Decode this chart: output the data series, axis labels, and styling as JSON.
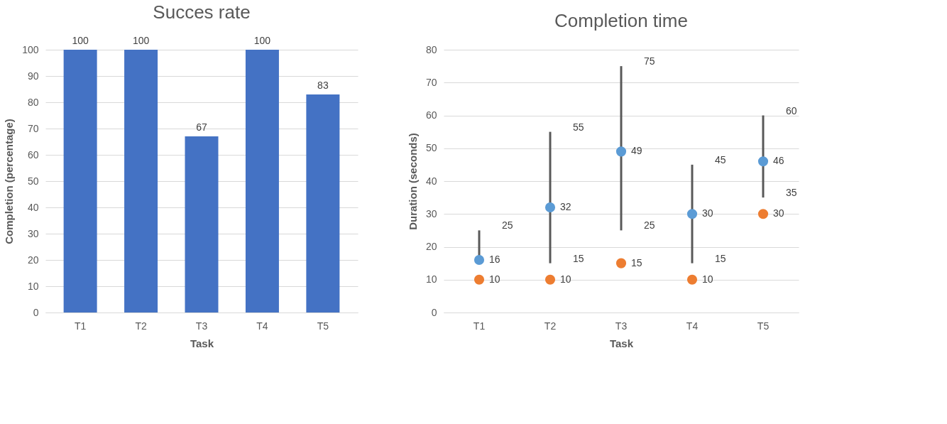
{
  "chart_data": [
    {
      "type": "bar",
      "title": "Succes rate",
      "xlabel": "Task",
      "ylabel": "Completion (percentage)",
      "categories": [
        "T1",
        "T2",
        "T3",
        "T4",
        "T5"
      ],
      "series": [
        {
          "color": "#4472c4",
          "values": [
            100,
            100,
            67,
            100,
            83
          ]
        }
      ],
      "ylim": [
        0,
        100
      ],
      "yticks": [
        0,
        10,
        20,
        30,
        40,
        50,
        60,
        70,
        80,
        90,
        100
      ],
      "grid": "y",
      "data_labels": true
    },
    {
      "type": "scatter",
      "title": "Completion time",
      "xlabel": "Task",
      "ylabel": "Duration (seconds)",
      "categories": [
        "T1",
        "T2",
        "T3",
        "T4",
        "T5"
      ],
      "series": [
        {
          "color": "#5b9bd5",
          "values": [
            16,
            32,
            49,
            30,
            46
          ],
          "errors": [
            [
              16,
              25
            ],
            [
              15,
              55
            ],
            [
              25,
              75
            ],
            [
              15,
              45
            ],
            [
              35,
              60
            ]
          ]
        },
        {
          "color": "#ed7d31",
          "values": [
            10,
            10,
            15,
            10,
            30
          ]
        }
      ],
      "annotations": [
        {
          "text": "25",
          "x": "T1",
          "y": 25
        },
        {
          "text": "55",
          "x": "T2",
          "y": 55
        },
        {
          "text": "15",
          "x": "T2",
          "y": 15
        },
        {
          "text": "75",
          "x": "T3",
          "y": 75
        },
        {
          "text": "25",
          "x": "T3",
          "y": 25
        },
        {
          "text": "45",
          "x": "T4",
          "y": 45
        },
        {
          "text": "15",
          "x": "T4",
          "y": 15
        },
        {
          "text": "60",
          "x": "T5",
          "y": 60
        },
        {
          "text": "35",
          "x": "T5",
          "y": 35
        }
      ],
      "ylim": [
        0,
        80
      ],
      "yticks": [
        0,
        10,
        20,
        30,
        40,
        50,
        60,
        70,
        80
      ],
      "grid": "y",
      "marker": "circle",
      "data_labels": true
    }
  ]
}
